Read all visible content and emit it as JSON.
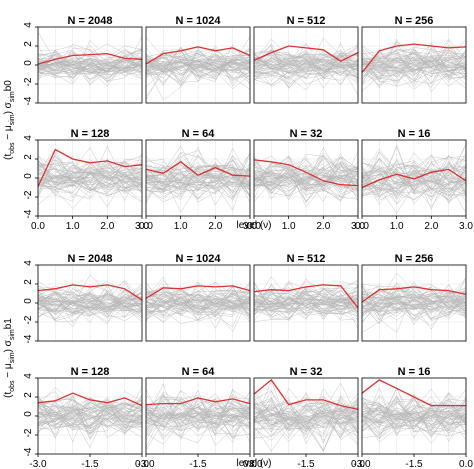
{
  "figure": {
    "xlabel": "level (ν)",
    "top_ylabel_main": "(t",
    "bottom_ylabel_main": "(t"
  },
  "chart_data": [
    {
      "type": "line",
      "group": "b0",
      "ylabel": "(t_obs − μ_sim) σ_sim b0",
      "xlabel": "level (ν)",
      "x_ticks": [
        "0.0",
        "1.0",
        "2.0",
        "3.0"
      ],
      "xlim": [
        0,
        3
      ],
      "ylim": [
        -4,
        4
      ],
      "y_ticks": [
        "-4",
        "-2",
        "0",
        "2",
        "4"
      ],
      "gray_series_color": "#b5b5b5",
      "red_series_color": "#e03030",
      "grid": true,
      "panels": [
        {
          "title": "N = 2048",
          "x": [
            0,
            0.5,
            1,
            1.5,
            2,
            2.5,
            3
          ],
          "red": [
            0.1,
            0.6,
            1.0,
            1.1,
            1.2,
            0.7,
            0.6
          ]
        },
        {
          "title": "N = 1024",
          "x": [
            0,
            0.5,
            1,
            1.5,
            2,
            2.5,
            3
          ],
          "red": [
            0.1,
            1.2,
            1.5,
            1.9,
            1.5,
            1.8,
            1.0
          ]
        },
        {
          "title": "N = 512",
          "x": [
            0,
            0.5,
            1,
            1.5,
            2,
            2.5,
            3
          ],
          "red": [
            0.5,
            1.3,
            2.0,
            1.8,
            1.6,
            0.4,
            1.3
          ]
        },
        {
          "title": "N = 256",
          "x": [
            0,
            0.5,
            1,
            1.5,
            2,
            2.5,
            3
          ],
          "red": [
            -0.8,
            1.5,
            2.0,
            2.2,
            2.0,
            1.8,
            1.9
          ]
        },
        {
          "title": "N = 128",
          "x": [
            0,
            0.5,
            1,
            1.5,
            2,
            2.5,
            3
          ],
          "red": [
            -0.9,
            3.0,
            2.0,
            1.6,
            1.8,
            1.2,
            1.4
          ]
        },
        {
          "title": "N = 64",
          "x": [
            0,
            0.5,
            1,
            1.5,
            2,
            2.5,
            3
          ],
          "red": [
            0.9,
            0.5,
            1.7,
            0.3,
            1.1,
            0.3,
            0.2
          ]
        },
        {
          "title": "N = 32",
          "x": [
            0,
            0.5,
            1,
            1.5,
            2,
            2.5,
            3
          ],
          "red": [
            1.9,
            1.7,
            1.4,
            0.6,
            -0.3,
            -0.7,
            -0.8
          ]
        },
        {
          "title": "N = 16",
          "x": [
            0,
            0.5,
            1,
            1.5,
            2,
            2.5,
            3
          ],
          "red": [
            -1.0,
            -0.2,
            0.4,
            -0.1,
            0.6,
            0.9,
            -0.3
          ]
        }
      ]
    },
    {
      "type": "line",
      "group": "b1",
      "ylabel": "(t_obs − μ_sim) σ_sim b1",
      "xlabel": "level (ν)",
      "x_ticks": [
        "-3.0",
        "-1.5",
        "0.0"
      ],
      "xlim": [
        -3,
        0
      ],
      "ylim": [
        -4,
        4
      ],
      "y_ticks": [
        "-4",
        "-2",
        "0",
        "2",
        "4"
      ],
      "gray_series_color": "#b5b5b5",
      "red_series_color": "#e03030",
      "grid": true,
      "panels": [
        {
          "title": "N = 2048",
          "x": [
            -3,
            -2.5,
            -2,
            -1.5,
            -1,
            -0.5,
            0
          ],
          "red": [
            1.3,
            1.5,
            1.9,
            1.7,
            1.9,
            1.5,
            0.3
          ]
        },
        {
          "title": "N = 1024",
          "x": [
            -3,
            -2.5,
            -2,
            -1.5,
            -1,
            -0.5,
            0
          ],
          "red": [
            0.5,
            1.6,
            1.5,
            1.8,
            1.7,
            1.8,
            1.3
          ]
        },
        {
          "title": "N = 512",
          "x": [
            -3,
            -2.5,
            -2,
            -1.5,
            -1,
            -0.5,
            0
          ],
          "red": [
            1.2,
            1.4,
            1.3,
            1.7,
            1.9,
            1.8,
            -0.5
          ]
        },
        {
          "title": "N = 256",
          "x": [
            -3,
            -2.5,
            -2,
            -1.5,
            -1,
            -0.5,
            0
          ],
          "red": [
            0.1,
            1.4,
            1.5,
            1.7,
            1.4,
            1.3,
            0.9
          ]
        },
        {
          "title": "N = 128",
          "x": [
            -3,
            -2.5,
            -2,
            -1.5,
            -1,
            -0.5,
            0
          ],
          "red": [
            1.4,
            1.6,
            2.4,
            1.7,
            1.4,
            1.9,
            1.1
          ]
        },
        {
          "title": "N = 64",
          "x": [
            -3,
            -2.5,
            -2,
            -1.5,
            -1,
            -0.5,
            0
          ],
          "red": [
            1.2,
            1.3,
            1.3,
            1.9,
            1.5,
            1.8,
            1.3
          ]
        },
        {
          "title": "N = 32",
          "x": [
            -3,
            -2.5,
            -2,
            -1.5,
            -1,
            -0.5,
            0
          ],
          "red": [
            2.3,
            3.8,
            1.2,
            1.7,
            1.7,
            1.1,
            0.7
          ]
        },
        {
          "title": "N = 16",
          "x": [
            -3,
            -2.5,
            -2,
            -1.5,
            -1,
            -0.5,
            0
          ],
          "red": [
            2.4,
            3.8,
            2.9,
            2.0,
            1.1,
            1.1,
            1.1
          ]
        }
      ]
    }
  ]
}
